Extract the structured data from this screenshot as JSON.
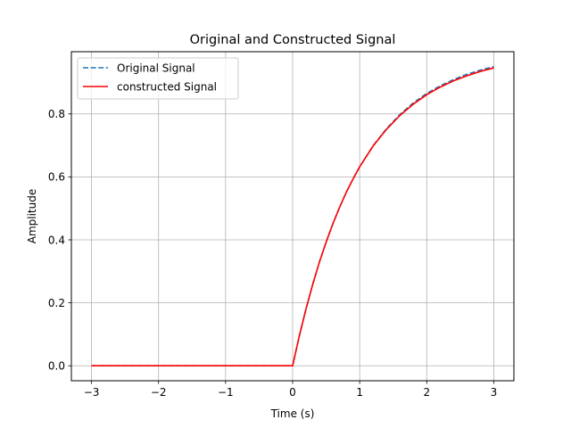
{
  "chart_data": {
    "type": "line",
    "title": "Original and Constructed Signal",
    "xlabel": "Time (s)",
    "ylabel": "Amplitude",
    "xlim": [
      -3.3,
      3.3
    ],
    "ylim": [
      -0.0475,
      0.9975
    ],
    "xticks": [
      -3,
      -2,
      -1,
      0,
      1,
      2,
      3
    ],
    "xtick_labels": [
      "−3",
      "−2",
      "−1",
      "0",
      "1",
      "2",
      "3"
    ],
    "yticks": [
      0.0,
      0.2,
      0.4,
      0.6,
      0.8
    ],
    "ytick_labels": [
      "0.0",
      "0.2",
      "0.4",
      "0.6",
      "0.8"
    ],
    "grid": true,
    "legend_position": "upper-left",
    "series": [
      {
        "name": "Original Signal",
        "color": "#1f77b4",
        "style": "dashed",
        "x": [
          -3.0,
          -2.0,
          -1.0,
          -0.01,
          0.0,
          0.1,
          0.2,
          0.3,
          0.4,
          0.5,
          0.6,
          0.7,
          0.8,
          0.9,
          1.0,
          1.2,
          1.4,
          1.6,
          1.8,
          2.0,
          2.2,
          2.4,
          2.6,
          2.8,
          3.0
        ],
        "y": [
          0.0,
          0.0,
          0.0,
          0.0,
          0.0,
          0.095,
          0.181,
          0.259,
          0.33,
          0.393,
          0.451,
          0.503,
          0.551,
          0.593,
          0.632,
          0.699,
          0.753,
          0.798,
          0.835,
          0.865,
          0.889,
          0.909,
          0.926,
          0.939,
          0.95
        ]
      },
      {
        "name": "constructed Signal",
        "color": "#ff0000",
        "style": "solid",
        "x": [
          -3.0,
          -2.0,
          -1.0,
          -0.01,
          0.0,
          0.1,
          0.2,
          0.3,
          0.4,
          0.5,
          0.6,
          0.7,
          0.8,
          0.9,
          1.0,
          1.2,
          1.4,
          1.6,
          1.8,
          2.0,
          2.2,
          2.4,
          2.6,
          2.8,
          3.0
        ],
        "y": [
          0.0,
          0.0,
          0.0,
          0.0,
          0.0,
          0.095,
          0.181,
          0.259,
          0.33,
          0.393,
          0.451,
          0.503,
          0.551,
          0.593,
          0.632,
          0.698,
          0.751,
          0.795,
          0.831,
          0.861,
          0.885,
          0.905,
          0.921,
          0.935,
          0.946
        ]
      }
    ]
  }
}
